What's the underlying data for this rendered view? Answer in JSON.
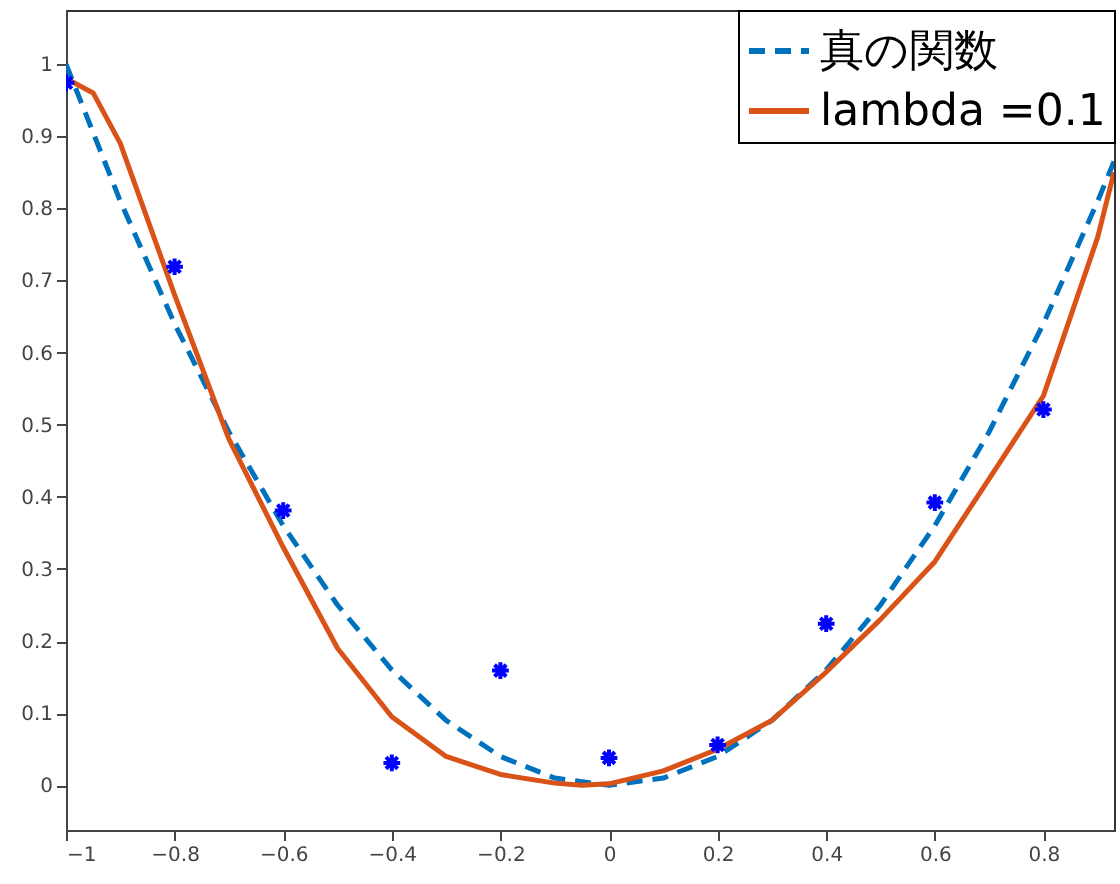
{
  "chart_data": {
    "type": "line",
    "xlim": [
      -1,
      0.93
    ],
    "ylim": [
      -0.062,
      1.075
    ],
    "xticks": [
      -1,
      -0.8,
      -0.6,
      -0.4,
      -0.2,
      0,
      0.2,
      0.4,
      0.6,
      0.8
    ],
    "yticks": [
      0,
      0.1,
      0.2,
      0.3,
      0.4,
      0.5,
      0.6,
      0.7,
      0.8,
      0.9,
      1
    ],
    "grid": false,
    "legend": "top right",
    "series": [
      {
        "name": "真の関数",
        "color": "#0072bd",
        "line_style": "dashed",
        "x": [
          -1,
          -0.9,
          -0.8,
          -0.7,
          -0.6,
          -0.5,
          -0.4,
          -0.3,
          -0.2,
          -0.1,
          0,
          0.1,
          0.2,
          0.3,
          0.4,
          0.5,
          0.6,
          0.7,
          0.8,
          0.9,
          0.93
        ],
        "values": [
          1,
          0.81,
          0.64,
          0.49,
          0.36,
          0.25,
          0.16,
          0.09,
          0.04,
          0.01,
          0,
          0.01,
          0.04,
          0.09,
          0.16,
          0.25,
          0.36,
          0.49,
          0.64,
          0.81,
          0.865
        ]
      },
      {
        "name": "lambda =0.1",
        "color": "#d95319",
        "line_style": "solid",
        "x": [
          -1,
          -0.95,
          -0.9,
          -0.8,
          -0.7,
          -0.6,
          -0.5,
          -0.4,
          -0.3,
          -0.2,
          -0.1,
          -0.05,
          0,
          0.1,
          0.2,
          0.3,
          0.4,
          0.5,
          0.6,
          0.7,
          0.8,
          0.9,
          0.93
        ],
        "values": [
          0.98,
          0.96,
          0.89,
          0.68,
          0.48,
          0.33,
          0.19,
          0.095,
          0.04,
          0.015,
          0.003,
          0,
          0.002,
          0.02,
          0.05,
          0.09,
          0.157,
          0.23,
          0.31,
          0.425,
          0.54,
          0.76,
          0.85
        ]
      },
      {
        "type": "scatter",
        "color": "#0000ff",
        "marker": "cross",
        "x": [
          -1,
          -0.8,
          -0.6,
          -0.4,
          -0.2,
          0,
          0.2,
          0.4,
          0.6,
          0.8
        ],
        "values": [
          0.974,
          0.719,
          0.381,
          0.031,
          0.159,
          0.038,
          0.056,
          0.224,
          0.392,
          0.521
        ]
      }
    ]
  }
}
